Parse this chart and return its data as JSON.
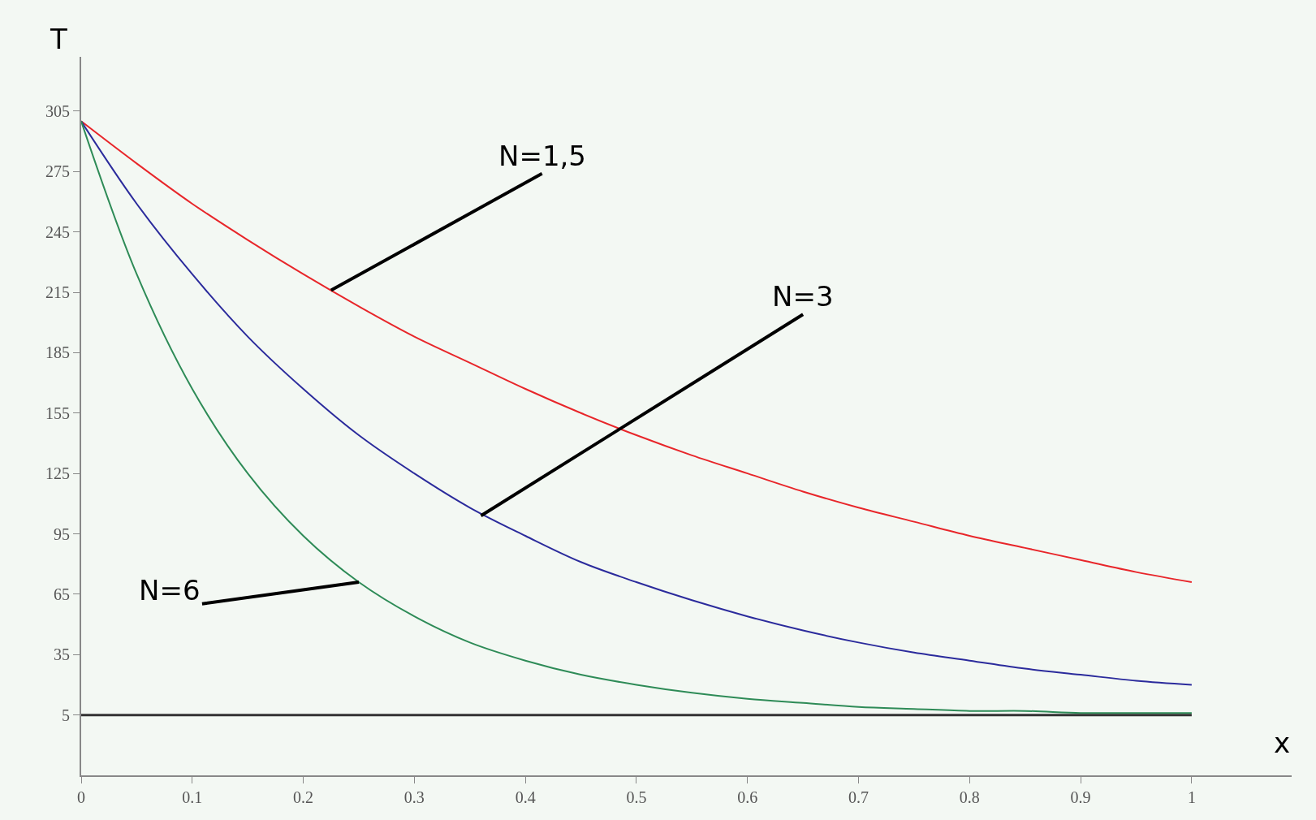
{
  "chart_data": {
    "type": "line",
    "xlabel": "x",
    "ylabel": "T",
    "x": [
      0,
      0.05,
      0.1,
      0.15,
      0.2,
      0.25,
      0.3,
      0.35,
      0.4,
      0.45,
      0.5,
      0.55,
      0.6,
      0.65,
      0.7,
      0.75,
      0.8,
      0.85,
      0.9,
      0.95,
      1
    ],
    "series": [
      {
        "color": "#e8262a",
        "values": [
          300,
          279,
          259,
          241,
          224,
          208,
          193,
          180,
          167,
          155,
          144,
          134,
          125,
          116,
          108,
          101,
          94,
          88,
          82,
          76,
          71
        ]
      },
      {
        "color": "#2b2b9c",
        "values": [
          300,
          259,
          224,
          193,
          167,
          144,
          125,
          108,
          94,
          81,
          71,
          62,
          54,
          47,
          41,
          36,
          32,
          28,
          25,
          22,
          20
        ]
      },
      {
        "color": "#2e8b57",
        "values": [
          300,
          224,
          167,
          125,
          94,
          71,
          54,
          41,
          32,
          25,
          20,
          16,
          13,
          11,
          9,
          8,
          7,
          7,
          6,
          6,
          6
        ]
      }
    ],
    "annotations": [
      {
        "text": "N=1,5",
        "x": 0.225,
        "y": 216
      },
      {
        "text": "N=3",
        "x": 0.36,
        "y": 104
      },
      {
        "text": "N=6",
        "x": 0.25,
        "y": 71
      }
    ],
    "ref_lines": [
      {
        "axis": "y",
        "value": 5,
        "color": "#333333"
      }
    ],
    "xlim": [
      0,
      1.09
    ],
    "ylim": [
      -25,
      332
    ],
    "xticks": [
      0,
      0.1,
      0.2,
      0.3,
      0.4,
      0.5,
      0.6,
      0.7,
      0.8,
      0.9,
      1
    ],
    "yticks": [
      5,
      35,
      65,
      95,
      125,
      155,
      185,
      215,
      245,
      275,
      305
    ],
    "grid": false,
    "legend": false,
    "marker": "none",
    "line_style": "solid"
  }
}
